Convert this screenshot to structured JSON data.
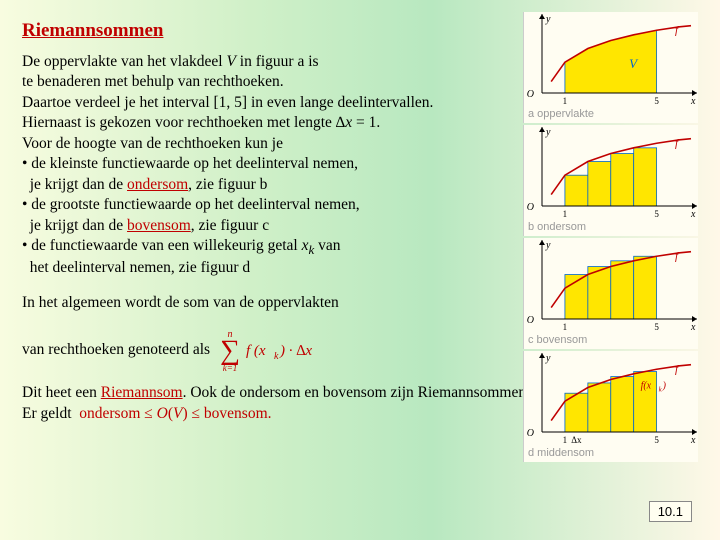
{
  "title": "Riemannsommen",
  "body": {
    "l1a": "De oppervlakte van het vlakdeel ",
    "l1b": "V",
    "l1c": " in figuur a is",
    "l2": "te benaderen met behulp van rechthoeken.",
    "l3": "Daartoe verdeel je het interval [1, 5] in even lange deelintervallen.",
    "l4a": "Hiernaast is gekozen voor rechthoeken met lengte ∆",
    "l4b": "x",
    "l4c": " = 1.",
    "l5": "Voor de hoogte van de rechthoeken kun je",
    "b1l1": "• de kleinste functiewaarde op het deelinterval nemen,",
    "b1l2a": "  je krijgt dan de ",
    "b1l2b": "ondersom",
    "b1l2c": ", zie figuur b",
    "b2l1": "• de grootste functiewaarde op het deelinterval nemen,",
    "b2l2a": "  je krijgt dan de ",
    "b2l2b": "bovensom",
    "b2l2c": ", zie figuur c",
    "b3l1a": "• de functiewaarde van een willekeurig getal ",
    "b3l1b": "x",
    "b3l1c": "k",
    "b3l1d": " van",
    "b3l2": "  het deelinterval nemen, zie figuur d",
    "p2": "In het algemeen wordt de som van de oppervlakten",
    "p3": "van rechthoeken genoteerd als",
    "p4a": "Dit heet een ",
    "p4b": "Riemannsom",
    "p4c": ". Ook de ondersom en bovensom zijn Riemannsommen.",
    "p5a": "Er geldt  ",
    "p5b": "ondersom ≤ ",
    "p5c": "O",
    "p5d": "(",
    "p5e": "V",
    "p5f": ") ≤ bovensom."
  },
  "formula": {
    "sigma": "∑",
    "n": "n",
    "k1": "k=1",
    "fx": "f (x",
    "k": "k",
    "close": " ) · ∆x",
    "color": "#c00000"
  },
  "figures": {
    "curve_color": "#c00000",
    "fill_color": "#ffe600",
    "axis_color": "#000",
    "bg": "#fffdf2",
    "width": 175,
    "height": 95,
    "xmin": 0,
    "xmax": 6.5,
    "ymin": 0,
    "ymax": 3.2,
    "curve_points": [
      [
        0.4,
        0.5
      ],
      [
        1,
        1.35
      ],
      [
        2,
        1.95
      ],
      [
        3,
        2.3
      ],
      [
        4,
        2.55
      ],
      [
        5,
        2.75
      ],
      [
        6,
        2.9
      ],
      [
        6.5,
        2.95
      ]
    ],
    "panels": [
      {
        "caption": "a  oppervlakte",
        "mode": "area",
        "V_label": "V"
      },
      {
        "caption": "b  ondersom",
        "mode": "lower",
        "bars": [
          [
            1,
            1.35
          ],
          [
            2,
            1.95
          ],
          [
            3,
            2.3
          ],
          [
            4,
            2.55
          ]
        ]
      },
      {
        "caption": "c  bovensom",
        "mode": "upper",
        "bars": [
          [
            1,
            1.95
          ],
          [
            2,
            2.3
          ],
          [
            3,
            2.55
          ],
          [
            4,
            2.75
          ]
        ]
      },
      {
        "caption": "d  middensom",
        "mode": "mid",
        "bars": [
          [
            1,
            1.7
          ],
          [
            2,
            2.15
          ],
          [
            3,
            2.43
          ],
          [
            4,
            2.65
          ]
        ],
        "dx_label": "Δx",
        "fx_label": "f(x",
        "fx_sub": "k",
        "fx_close": ")"
      }
    ],
    "f_label": "f",
    "O_label": "O",
    "x_label": "x",
    "y_label": "y",
    "tick1": "1",
    "tick5": "5"
  },
  "pagenum": "10.1"
}
